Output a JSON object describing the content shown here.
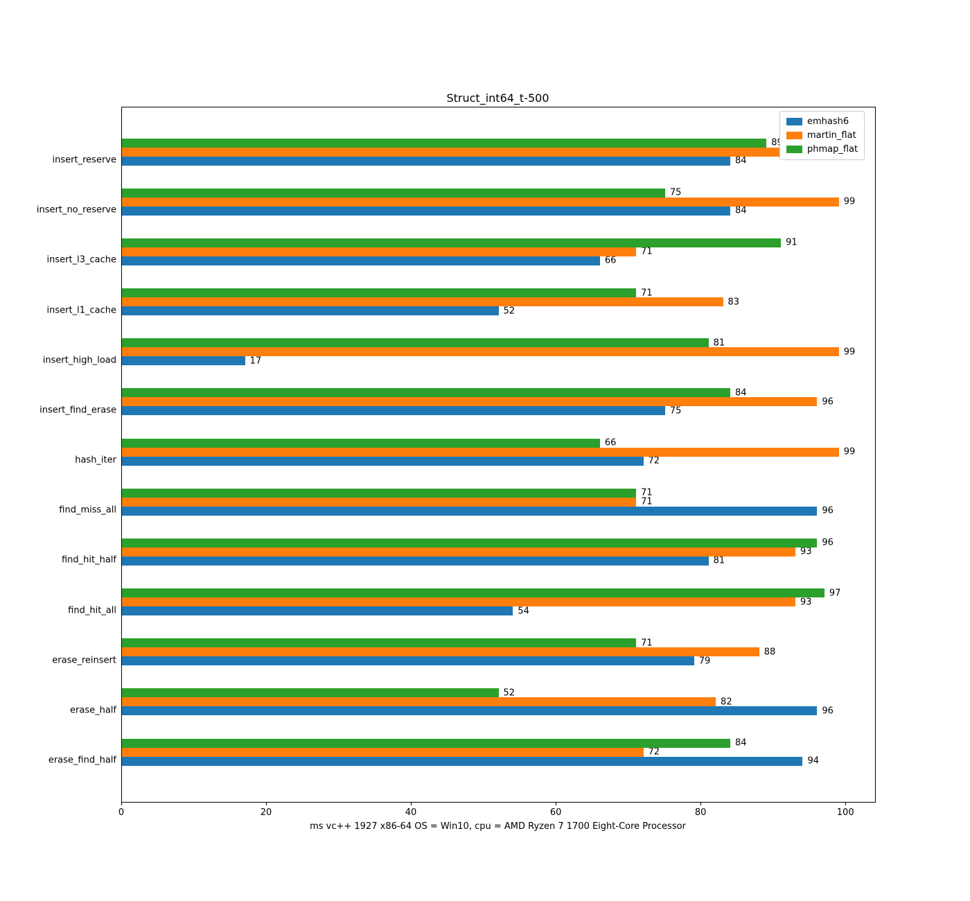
{
  "chart_data": {
    "type": "bar",
    "orientation": "horizontal",
    "title": "Struct_int64_t-500",
    "xlabel": "ms vc++ 1927 x86-64 OS = Win10, cpu = AMD Ryzen 7 1700 Eight-Core Processor",
    "ylabel": "",
    "xlim": [
      0,
      104
    ],
    "xticks": [
      0,
      20,
      40,
      60,
      80,
      100
    ],
    "grid": false,
    "legend_position": "upper right",
    "categories": [
      "insert_reserve",
      "insert_no_reserve",
      "insert_l3_cache",
      "insert_l1_cache",
      "insert_high_load",
      "insert_find_erase",
      "hash_iter",
      "find_miss_all",
      "find_hit_half",
      "find_hit_all",
      "erase_reinsert",
      "erase_half",
      "erase_find_half"
    ],
    "series": [
      {
        "name": "emhash6",
        "color": "#1f77b4",
        "values": [
          84,
          84,
          66,
          52,
          17,
          75,
          72,
          96,
          81,
          54,
          79,
          96,
          94
        ]
      },
      {
        "name": "martin_flat",
        "color": "#ff7f0e",
        "values": [
          98,
          99,
          71,
          83,
          99,
          96,
          99,
          71,
          93,
          93,
          88,
          82,
          72
        ]
      },
      {
        "name": "phmap_flat",
        "color": "#2ca02c",
        "values": [
          89,
          75,
          91,
          71,
          81,
          84,
          66,
          71,
          96,
          97,
          71,
          52,
          84
        ]
      }
    ]
  }
}
